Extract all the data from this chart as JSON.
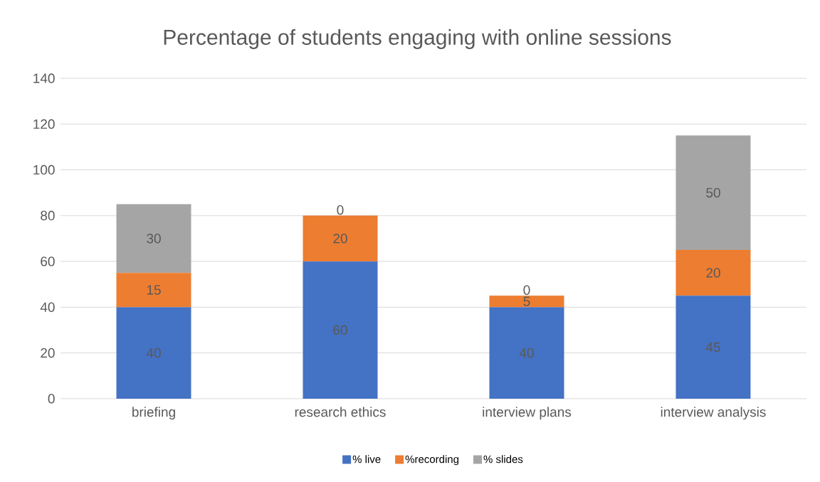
{
  "chart_data": {
    "type": "bar",
    "stacked": true,
    "title": "Percentage of students engaging with online sessions",
    "categories": [
      "briefing",
      "research ethics",
      "interview plans",
      "interview analysis"
    ],
    "series": [
      {
        "name": "% live",
        "color": "#4472c4",
        "values": [
          40,
          60,
          40,
          45
        ]
      },
      {
        "name": "%recording",
        "color": "#ed7d31",
        "values": [
          15,
          20,
          5,
          20
        ]
      },
      {
        "name": "% slides",
        "color": "#a5a5a5",
        "values": [
          30,
          0,
          0,
          50
        ]
      }
    ],
    "ylim": [
      0,
      140
    ],
    "yticks": [
      0,
      20,
      40,
      60,
      80,
      100,
      120,
      140
    ],
    "grid": "y",
    "legend": "bottom",
    "data_labels": true
  }
}
